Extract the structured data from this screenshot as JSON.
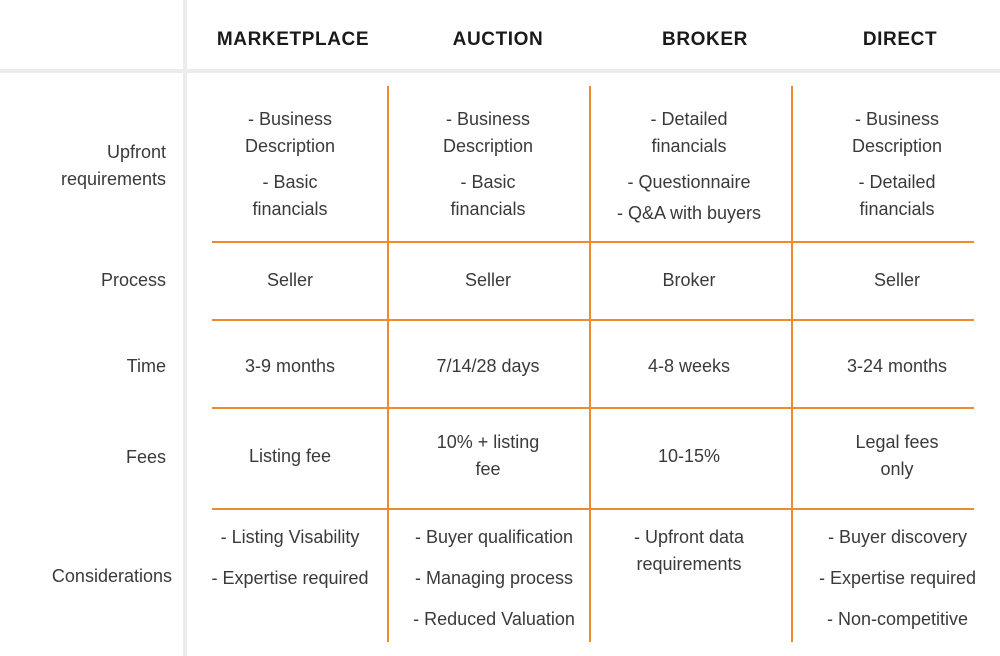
{
  "columns": [
    "MARKETPLACE",
    "AUCTION",
    "BROKER",
    "DIRECT"
  ],
  "rows": [
    {
      "label_lines": [
        "Upfront",
        "requirements"
      ],
      "cells": [
        [
          [
            "- Business",
            "Description"
          ],
          [
            "- Basic",
            "financials"
          ]
        ],
        [
          [
            "- Business",
            "Description"
          ],
          [
            "- Basic",
            "financials"
          ]
        ],
        [
          [
            "- Detailed",
            "financials"
          ],
          [
            "- Questionnaire"
          ],
          [
            "- Q&A with buyers"
          ]
        ],
        [
          [
            "- Business",
            "Description"
          ],
          [
            "- Detailed",
            "financials"
          ]
        ]
      ]
    },
    {
      "label_lines": [
        "Process"
      ],
      "cells": [
        [
          [
            "Seller"
          ]
        ],
        [
          [
            "Seller"
          ]
        ],
        [
          [
            "Broker"
          ]
        ],
        [
          [
            "Seller"
          ]
        ]
      ]
    },
    {
      "label_lines": [
        "Time"
      ],
      "cells": [
        [
          [
            "3-9 months"
          ]
        ],
        [
          [
            "7/14/28 days"
          ]
        ],
        [
          [
            "4-8 weeks"
          ]
        ],
        [
          [
            "3-24 months"
          ]
        ]
      ]
    },
    {
      "label_lines": [
        "Fees"
      ],
      "cells": [
        [
          [
            "Listing fee"
          ]
        ],
        [
          [
            "10% + listing",
            "fee"
          ]
        ],
        [
          [
            "10-15%"
          ]
        ],
        [
          [
            "Legal fees",
            "only"
          ]
        ]
      ]
    },
    {
      "label_lines": [
        "Considerations"
      ],
      "cells": [
        [
          [
            "- Listing Visability"
          ],
          [
            "- Expertise required"
          ]
        ],
        [
          [
            "- Buyer qualification"
          ],
          [
            "- Managing process"
          ],
          [
            "- Reduced Valuation"
          ]
        ],
        [
          [
            "- Upfront data",
            "requirements"
          ]
        ],
        [
          [
            "- Buyer discovery"
          ],
          [
            "- Expertise required"
          ],
          [
            "- Non-competitive"
          ]
        ]
      ]
    }
  ],
  "colors": {
    "accent": "#f08a2e",
    "divider": "#ececec",
    "text": "#3a3a3a"
  }
}
